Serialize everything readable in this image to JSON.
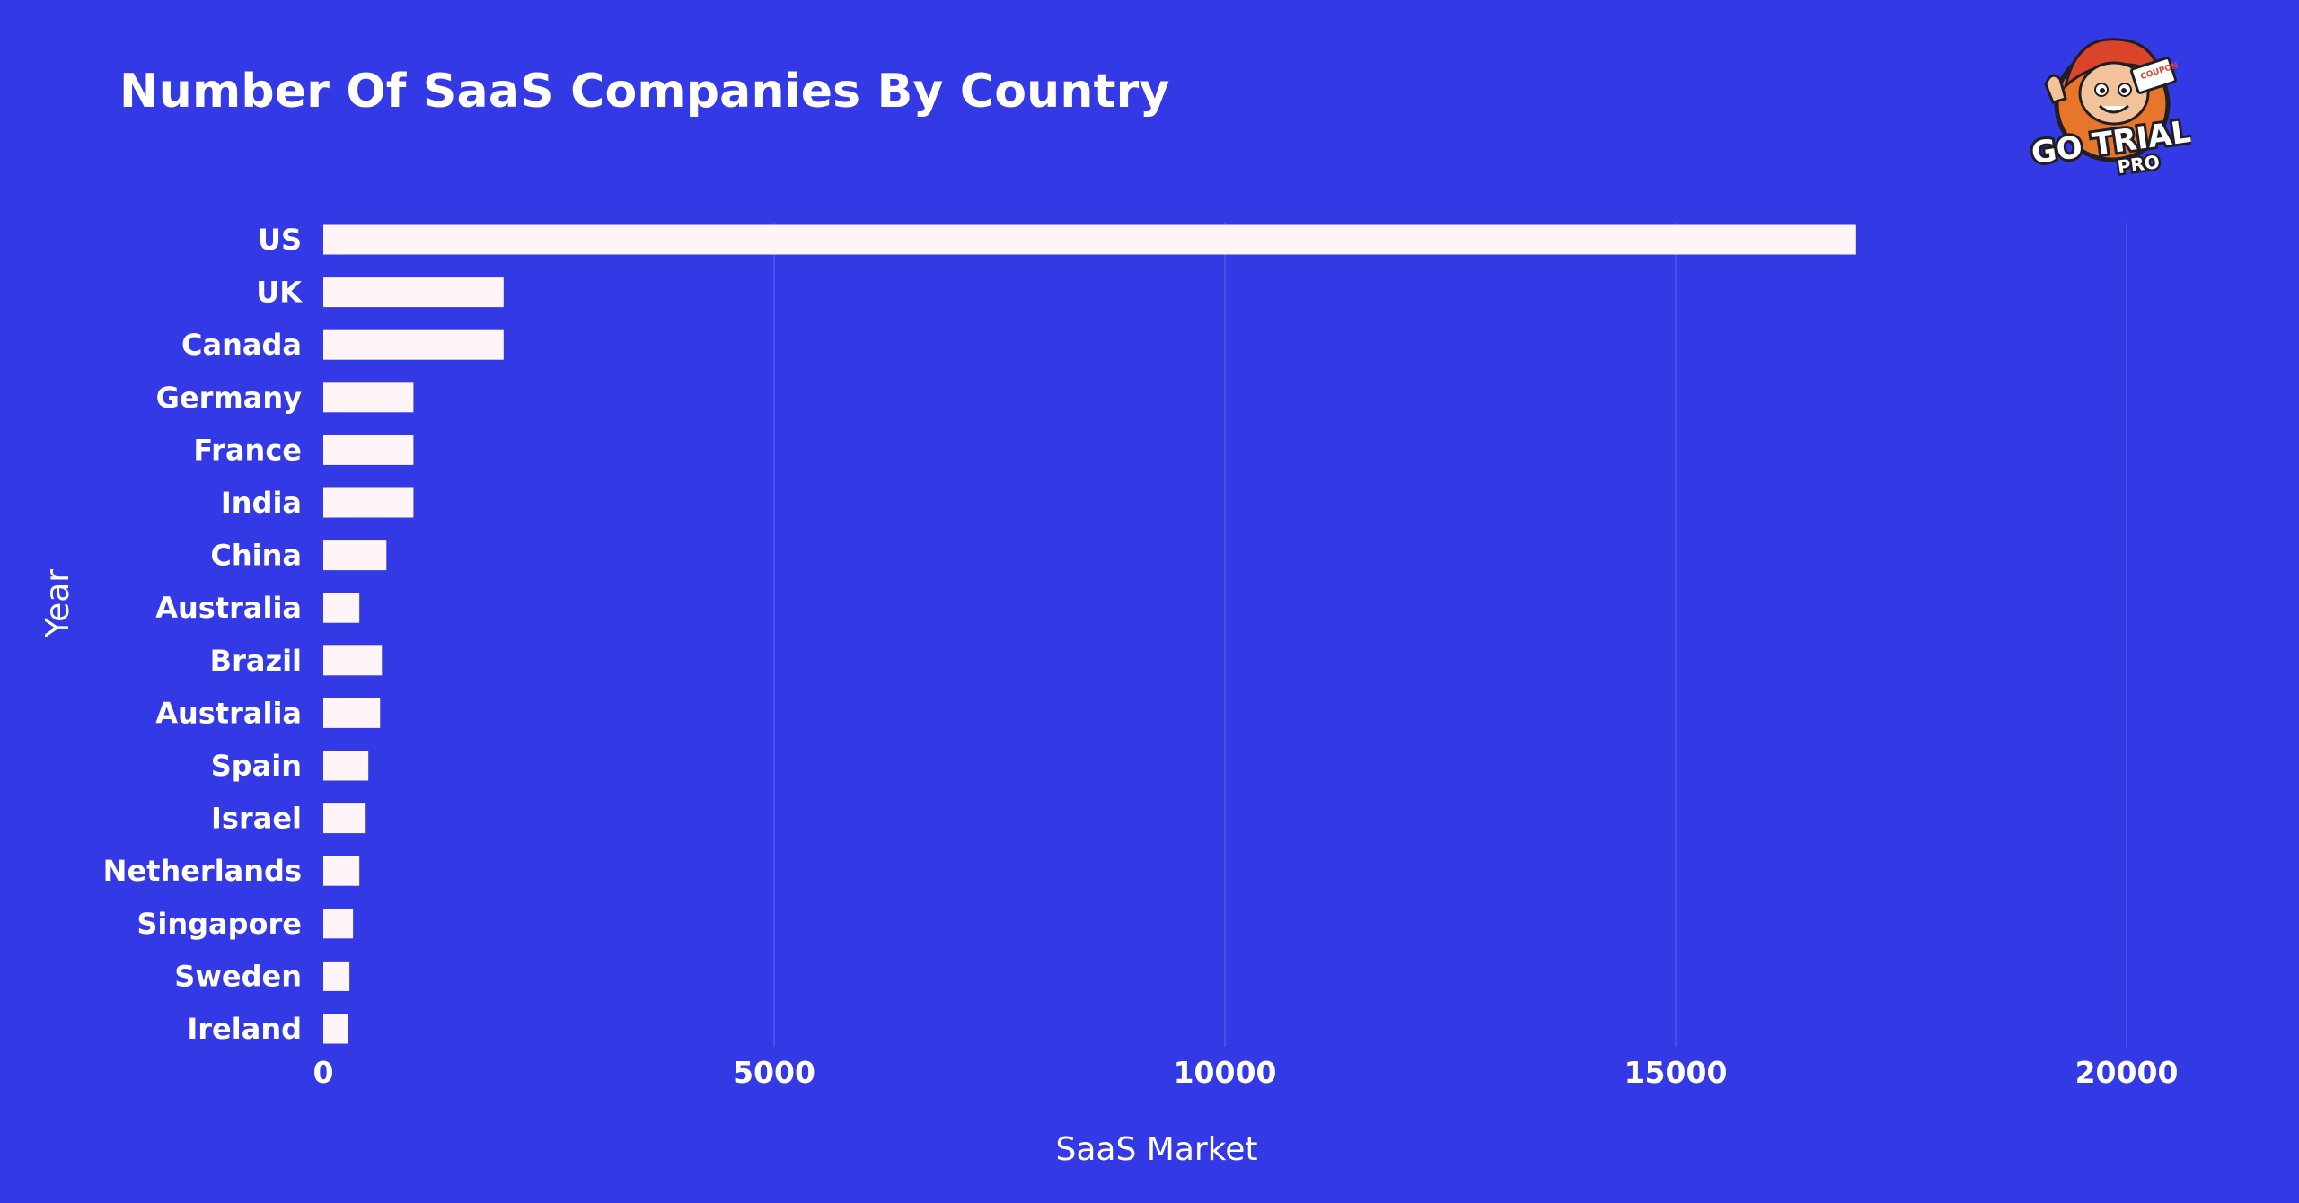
{
  "chart_data": {
    "type": "bar",
    "orientation": "horizontal",
    "title": "Number Of SaaS Companies By Country",
    "xlabel": "SaaS Market",
    "ylabel": "Year",
    "categories": [
      "US",
      "UK",
      "Canada",
      "Germany",
      "France",
      "India",
      "China",
      "Australia",
      "Brazil",
      "Australia",
      "Spain",
      "Israel",
      "Netherlands",
      "Singapore",
      "Sweden",
      "Ireland"
    ],
    "values": [
      17000,
      2000,
      2000,
      1000,
      1000,
      1000,
      700,
      400,
      650,
      630,
      500,
      460,
      400,
      330,
      290,
      270
    ],
    "xlim": [
      0,
      20000
    ],
    "xticks": [
      "0",
      "5000",
      "10000",
      "15000",
      "20000"
    ],
    "grid": "vertical",
    "bar_color": "#FFF5F8",
    "background_color": "#3439E6",
    "grid_color": "#5257EE"
  },
  "logo": {
    "text": "GO TRIAL",
    "subtext": "PRO",
    "badge_text": "COUPON"
  }
}
